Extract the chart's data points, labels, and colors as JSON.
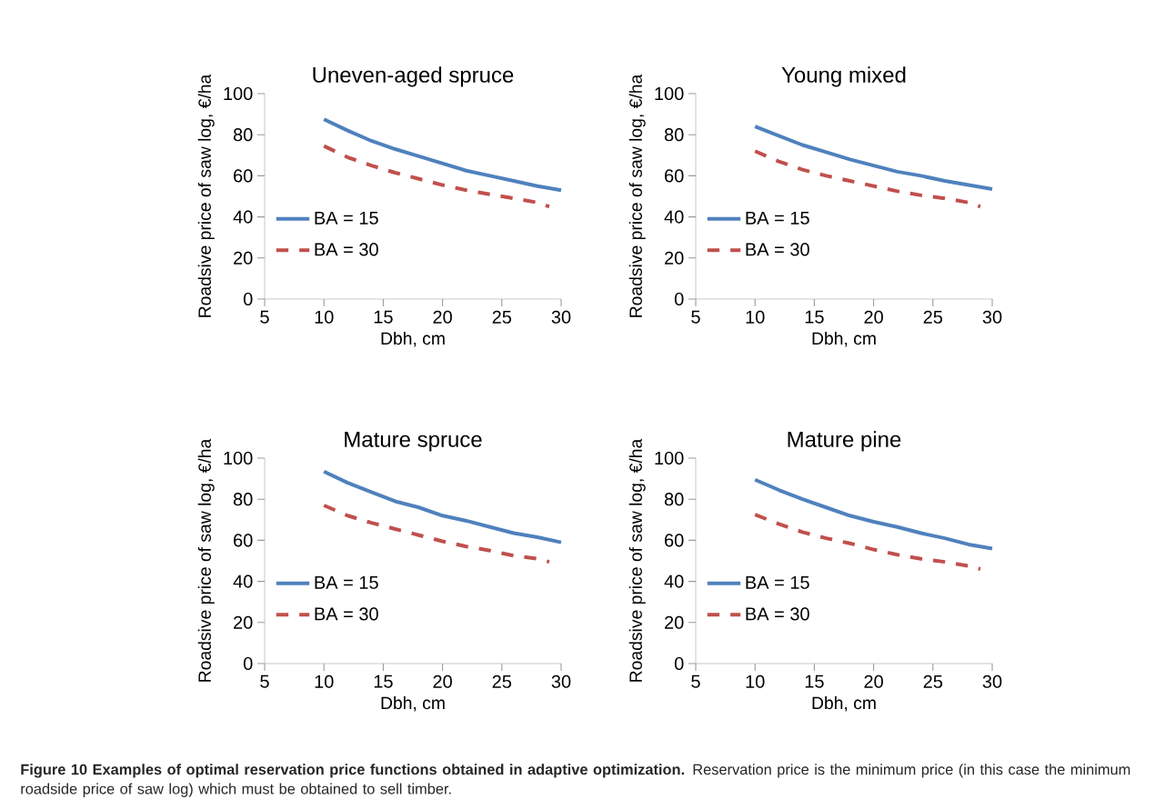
{
  "chart_data": [
    {
      "type": "line",
      "title": "Uneven-aged spruce",
      "xlabel": "Dbh, cm",
      "ylabel": "Roadsive price of saw log, €/ha",
      "xlim": [
        5,
        30
      ],
      "ylim": [
        0,
        100
      ],
      "xticks": [
        5,
        10,
        15,
        20,
        25,
        30
      ],
      "yticks": [
        0,
        20,
        40,
        60,
        80,
        100
      ],
      "legend": "left",
      "grid": false,
      "marker": "none",
      "series": [
        {
          "name": "BA = 15",
          "color": "#4f81bd",
          "line_style": "solid",
          "x": [
            10,
            12,
            14,
            16,
            18,
            20,
            22,
            24,
            26,
            28,
            30
          ],
          "values": [
            87.5,
            82,
            77,
            73,
            69.5,
            66,
            62.5,
            60,
            57.5,
            55,
            53
          ]
        },
        {
          "name": "BA = 30",
          "color": "#c0504d",
          "line_style": "dashed",
          "x": [
            10,
            12,
            14,
            16,
            18,
            20,
            22,
            24,
            26,
            28,
            29
          ],
          "values": [
            74.5,
            69,
            65,
            61.5,
            58.5,
            55.5,
            53,
            51,
            49,
            47,
            45
          ]
        }
      ]
    },
    {
      "type": "line",
      "title": "Young mixed",
      "xlabel": "Dbh, cm",
      "ylabel": "Roadsive price of saw log, €/ha",
      "xlim": [
        5,
        30
      ],
      "ylim": [
        0,
        100
      ],
      "xticks": [
        5,
        10,
        15,
        20,
        25,
        30
      ],
      "yticks": [
        0,
        20,
        40,
        60,
        80,
        100
      ],
      "legend": "left",
      "grid": false,
      "marker": "none",
      "series": [
        {
          "name": "BA = 15",
          "color": "#4f81bd",
          "line_style": "solid",
          "x": [
            10,
            12,
            14,
            16,
            18,
            20,
            22,
            24,
            26,
            28,
            30
          ],
          "values": [
            84,
            79.5,
            75,
            71.5,
            68,
            65,
            62,
            60,
            57.5,
            55.5,
            53.5
          ]
        },
        {
          "name": "BA = 30",
          "color": "#c0504d",
          "line_style": "dashed",
          "x": [
            10,
            12,
            14,
            16,
            18,
            20,
            22,
            24,
            26,
            28,
            29
          ],
          "values": [
            72,
            67,
            63,
            60,
            57.5,
            55,
            52.5,
            50.5,
            49,
            47,
            45
          ]
        }
      ]
    },
    {
      "type": "line",
      "title": "Mature spruce",
      "xlabel": "Dbh, cm",
      "ylabel": "Roadsive price of saw log, €/ha",
      "xlim": [
        5,
        30
      ],
      "ylim": [
        0,
        100
      ],
      "xticks": [
        5,
        10,
        15,
        20,
        25,
        30
      ],
      "yticks": [
        0,
        20,
        40,
        60,
        80,
        100
      ],
      "legend": "left",
      "grid": false,
      "marker": "none",
      "series": [
        {
          "name": "BA = 15",
          "color": "#4f81bd",
          "line_style": "solid",
          "x": [
            10,
            12,
            14,
            16,
            18,
            20,
            22,
            24,
            26,
            28,
            30
          ],
          "values": [
            93.5,
            88,
            83.5,
            79,
            76,
            72,
            69.5,
            66.5,
            63.5,
            61.5,
            59
          ]
        },
        {
          "name": "BA = 30",
          "color": "#c0504d",
          "line_style": "dashed",
          "x": [
            10,
            12,
            14,
            16,
            18,
            20,
            22,
            24,
            26,
            28,
            29
          ],
          "values": [
            77,
            72,
            68.5,
            65.5,
            62.5,
            59.5,
            57,
            55,
            52.5,
            51,
            49.5
          ]
        }
      ]
    },
    {
      "type": "line",
      "title": "Mature pine",
      "xlabel": "Dbh, cm",
      "ylabel": "Roadsive price of saw log, €/ha",
      "xlim": [
        5,
        30
      ],
      "ylim": [
        0,
        100
      ],
      "xticks": [
        5,
        10,
        15,
        20,
        25,
        30
      ],
      "yticks": [
        0,
        20,
        40,
        60,
        80,
        100
      ],
      "legend": "left",
      "grid": false,
      "marker": "none",
      "series": [
        {
          "name": "BA = 15",
          "color": "#4f81bd",
          "line_style": "solid",
          "x": [
            10,
            12,
            14,
            16,
            18,
            20,
            22,
            24,
            26,
            28,
            30
          ],
          "values": [
            89.5,
            84.5,
            80,
            76,
            72,
            69,
            66.5,
            63.5,
            61,
            58,
            56
          ]
        },
        {
          "name": "BA = 30",
          "color": "#c0504d",
          "line_style": "dashed",
          "x": [
            10,
            12,
            14,
            16,
            18,
            20,
            22,
            24,
            26,
            28,
            29
          ],
          "values": [
            72.5,
            68,
            64,
            61,
            58.5,
            55.5,
            53,
            51,
            49.5,
            47.5,
            46
          ]
        }
      ],
      "annotations": [
        "**Figure 10 Examples of optimal reservation price functions obtained in adaptive optimization.** Reservation price is the minimum price (in this case the minimum roadside price of saw log) which must be obtained to sell timber."
      ]
    }
  ]
}
